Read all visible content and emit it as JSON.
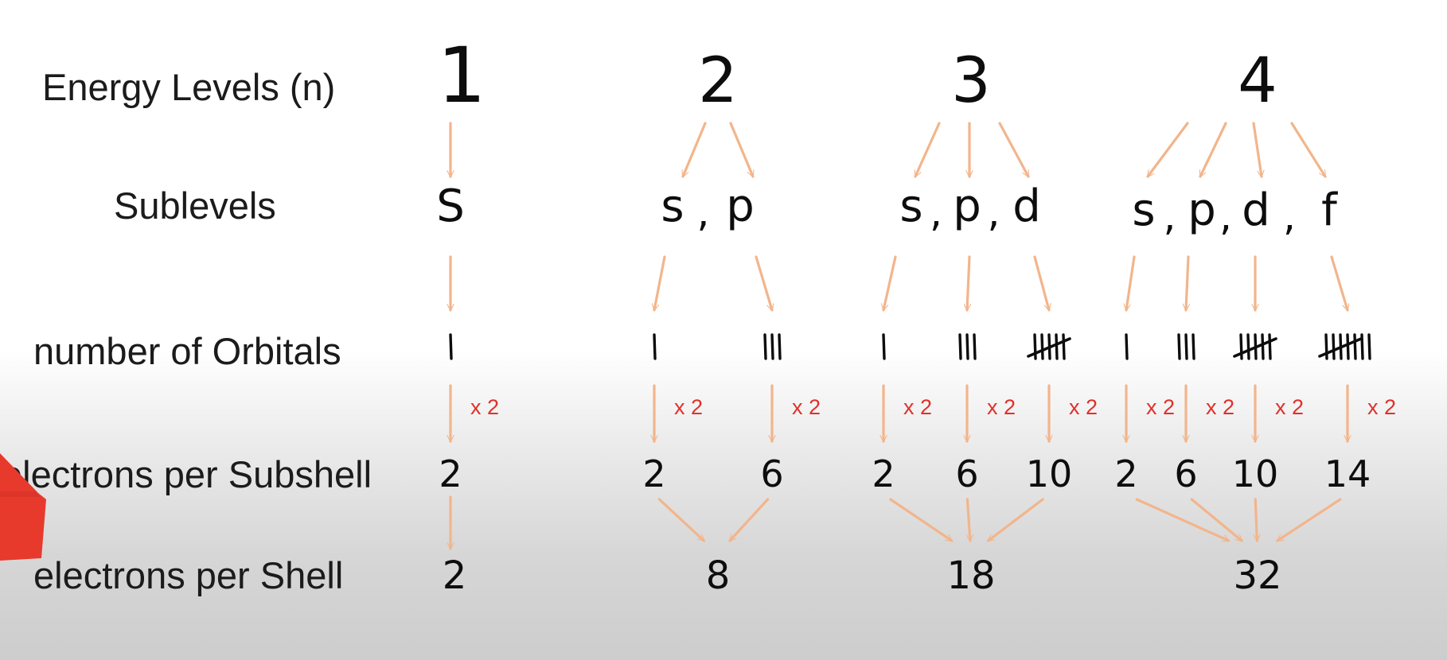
{
  "row_labels": {
    "energy_levels": "Energy Levels (n)",
    "sublevels": "Sublevels",
    "orbitals": "number of Orbitals",
    "electrons_per_subshell": "electrons per Subshell",
    "electrons_per_shell": "electrons per Shell"
  },
  "multiplier": "x 2",
  "colors": {
    "arrow": "#f2b58c",
    "multiplier": "#e0302a",
    "ink": "#0d0d0d",
    "corner_arrow": "#e8392d"
  },
  "levels": [
    {
      "n": "1",
      "sublevels": [
        "S"
      ],
      "orbital_counts": [
        1
      ],
      "subshell_electrons": [
        "2"
      ],
      "shell_electrons": "2"
    },
    {
      "n": "2",
      "sublevels": [
        "s",
        "p"
      ],
      "orbital_counts": [
        1,
        3
      ],
      "subshell_electrons": [
        "2",
        "6"
      ],
      "shell_electrons": "8"
    },
    {
      "n": "3",
      "sublevels": [
        "s",
        "p",
        "d"
      ],
      "orbital_counts": [
        1,
        3,
        5
      ],
      "subshell_electrons": [
        "2",
        "6",
        "10"
      ],
      "shell_electrons": "18"
    },
    {
      "n": "4",
      "sublevels": [
        "s",
        "p",
        "d",
        "f"
      ],
      "orbital_counts": [
        1,
        3,
        5,
        7
      ],
      "subshell_electrons": [
        "2",
        "6",
        "10",
        "14"
      ],
      "shell_electrons": "32"
    }
  ],
  "corner_icon": "red-arrow-icon"
}
